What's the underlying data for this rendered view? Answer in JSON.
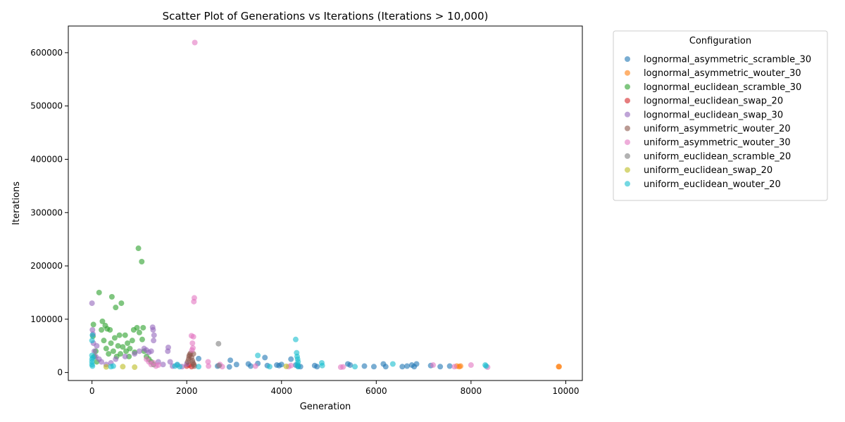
{
  "chart_data": {
    "type": "scatter",
    "title": "Scatter Plot of Generations vs Iterations (Iterations > 10,000)",
    "xlabel": "Generation",
    "ylabel": "Iterations",
    "xlim": [
      -500,
      10350
    ],
    "ylim": [
      -15000,
      650000
    ],
    "xticks": [
      0,
      2000,
      4000,
      6000,
      8000,
      10000
    ],
    "yticks": [
      0,
      100000,
      200000,
      300000,
      400000,
      500000,
      600000
    ],
    "grid": false,
    "legend": {
      "title": "Configuration",
      "placement": "outside-right-top"
    },
    "series": [
      {
        "name": "lognormal_asymmetric_scramble_30",
        "color": "#1f77b4",
        "points": [
          [
            2250,
            26000
          ],
          [
            2650,
            12000
          ],
          [
            2900,
            10500
          ],
          [
            2920,
            23000
          ],
          [
            3050,
            15000
          ],
          [
            3300,
            16000
          ],
          [
            3350,
            12000
          ],
          [
            3500,
            17000
          ],
          [
            3650,
            28000
          ],
          [
            3700,
            13000
          ],
          [
            3900,
            14000
          ],
          [
            3950,
            13000
          ],
          [
            4000,
            15000
          ],
          [
            4200,
            25000
          ],
          [
            4300,
            14000
          ],
          [
            4350,
            12000
          ],
          [
            4400,
            11000
          ],
          [
            4700,
            13000
          ],
          [
            4750,
            11000
          ],
          [
            5400,
            16000
          ],
          [
            5450,
            14000
          ],
          [
            5750,
            12000
          ],
          [
            5950,
            11000
          ],
          [
            6150,
            16000
          ],
          [
            6200,
            11000
          ],
          [
            6550,
            11000
          ],
          [
            6650,
            12000
          ],
          [
            6750,
            14000
          ],
          [
            6800,
            11000
          ],
          [
            6850,
            16000
          ],
          [
            7150,
            13000
          ],
          [
            7350,
            11000
          ],
          [
            7550,
            12000
          ]
        ]
      },
      {
        "name": "lognormal_asymmetric_wouter_30",
        "color": "#ff7f0e",
        "points": [
          [
            7700,
            12000
          ],
          [
            7750,
            11000
          ],
          [
            7780,
            12000
          ],
          [
            9850,
            11000
          ],
          [
            9860,
            11000
          ]
        ]
      },
      {
        "name": "lognormal_euclidean_scramble_30",
        "color": "#2ca02c",
        "points": [
          [
            20,
            68000
          ],
          [
            30,
            90000
          ],
          [
            50,
            30000
          ],
          [
            80,
            40000
          ],
          [
            100,
            20000
          ],
          [
            150,
            150000
          ],
          [
            200,
            80000
          ],
          [
            220,
            96000
          ],
          [
            250,
            60000
          ],
          [
            280,
            88000
          ],
          [
            300,
            45000
          ],
          [
            320,
            82000
          ],
          [
            350,
            35000
          ],
          [
            380,
            80000
          ],
          [
            400,
            55000
          ],
          [
            420,
            142000
          ],
          [
            450,
            40000
          ],
          [
            480,
            65000
          ],
          [
            500,
            122000
          ],
          [
            520,
            30000
          ],
          [
            550,
            50000
          ],
          [
            580,
            70000
          ],
          [
            600,
            35000
          ],
          [
            620,
            130000
          ],
          [
            650,
            48000
          ],
          [
            700,
            70000
          ],
          [
            720,
            40000
          ],
          [
            750,
            55000
          ],
          [
            780,
            30000
          ],
          [
            800,
            45000
          ],
          [
            850,
            60000
          ],
          [
            880,
            80000
          ],
          [
            900,
            38000
          ],
          [
            950,
            84000
          ],
          [
            980,
            233000
          ],
          [
            1000,
            75000
          ],
          [
            1050,
            208000
          ],
          [
            1060,
            62000
          ],
          [
            1080,
            84000
          ],
          [
            1100,
            40000
          ],
          [
            1150,
            30000
          ],
          [
            1200,
            25000
          ],
          [
            1250,
            20000
          ],
          [
            1300,
            15000
          ]
        ]
      },
      {
        "name": "lognormal_euclidean_swap_20",
        "color": "#d62728",
        "points": [
          [
            2000,
            12000
          ],
          [
            2050,
            14000
          ],
          [
            2100,
            11000
          ]
        ]
      },
      {
        "name": "lognormal_euclidean_swap_30",
        "color": "#9467bd",
        "points": [
          [
            0,
            130000
          ],
          [
            10,
            80000
          ],
          [
            20,
            72000
          ],
          [
            30,
            55000
          ],
          [
            50,
            40000
          ],
          [
            80,
            30000
          ],
          [
            100,
            50000
          ],
          [
            150,
            25000
          ],
          [
            200,
            20000
          ],
          [
            300,
            15000
          ],
          [
            400,
            18000
          ],
          [
            500,
            25000
          ],
          [
            700,
            30000
          ],
          [
            900,
            35000
          ],
          [
            1000,
            40000
          ],
          [
            1100,
            45000
          ],
          [
            1150,
            42000
          ],
          [
            1200,
            38000
          ],
          [
            1250,
            40000
          ],
          [
            1280,
            85000
          ],
          [
            1290,
            80000
          ],
          [
            1300,
            60000
          ],
          [
            1310,
            70000
          ],
          [
            1400,
            20000
          ],
          [
            1500,
            15000
          ],
          [
            1600,
            40000
          ],
          [
            1610,
            47000
          ],
          [
            1650,
            20000
          ],
          [
            1700,
            12000
          ],
          [
            1800,
            14000
          ],
          [
            1900,
            11000
          ],
          [
            2000,
            16000
          ]
        ]
      },
      {
        "name": "uniform_asymmetric_wouter_20",
        "color": "#8c564b",
        "points": [
          [
            2020,
            20000
          ],
          [
            2040,
            25000
          ],
          [
            2050,
            30000
          ],
          [
            2060,
            33000
          ],
          [
            2080,
            36000
          ],
          [
            2100,
            28000
          ],
          [
            2120,
            22000
          ],
          [
            2130,
            18000
          ],
          [
            2140,
            35000
          ],
          [
            2150,
            15000
          ],
          [
            2160,
            12000
          ]
        ]
      },
      {
        "name": "uniform_asymmetric_wouter_30",
        "color": "#e377c2",
        "points": [
          [
            2170,
            619000
          ],
          [
            2150,
            133000
          ],
          [
            2160,
            140000
          ],
          [
            2100,
            69000
          ],
          [
            2140,
            67000
          ],
          [
            2120,
            55000
          ],
          [
            2130,
            46000
          ],
          [
            2110,
            42000
          ],
          [
            1150,
            25000
          ],
          [
            1200,
            20000
          ],
          [
            1250,
            15000
          ],
          [
            1300,
            18000
          ],
          [
            1350,
            12000
          ],
          [
            1400,
            14000
          ],
          [
            2450,
            20000
          ],
          [
            2460,
            12000
          ],
          [
            2700,
            15000
          ],
          [
            2750,
            11000
          ],
          [
            3450,
            12000
          ],
          [
            4150,
            11000
          ],
          [
            4200,
            13000
          ],
          [
            5250,
            10000
          ],
          [
            5300,
            10500
          ],
          [
            7200,
            14000
          ],
          [
            7650,
            11000
          ],
          [
            8000,
            14000
          ],
          [
            8350,
            10000
          ]
        ]
      },
      {
        "name": "uniform_euclidean_scramble_20",
        "color": "#7f7f7f",
        "points": [
          [
            2670,
            54000
          ],
          [
            2680,
            13000
          ]
        ]
      },
      {
        "name": "uniform_euclidean_swap_20",
        "color": "#bcbd22",
        "points": [
          [
            300,
            10500
          ],
          [
            650,
            11000
          ],
          [
            900,
            10000
          ],
          [
            4100,
            11500
          ]
        ]
      },
      {
        "name": "uniform_euclidean_wouter_20",
        "color": "#17becf",
        "points": [
          [
            0,
            32000
          ],
          [
            0,
            25000
          ],
          [
            0,
            20000
          ],
          [
            0,
            15000
          ],
          [
            0,
            60000
          ],
          [
            10,
            70000
          ],
          [
            10,
            12000
          ],
          [
            20,
            28000
          ],
          [
            400,
            11000
          ],
          [
            450,
            12000
          ],
          [
            1750,
            12000
          ],
          [
            1800,
            15000
          ],
          [
            1850,
            11000
          ],
          [
            2250,
            11000
          ],
          [
            3500,
            32000
          ],
          [
            3750,
            11000
          ],
          [
            4300,
            62000
          ],
          [
            4320,
            37000
          ],
          [
            4330,
            30000
          ],
          [
            4340,
            25000
          ],
          [
            4350,
            20000
          ],
          [
            4340,
            15000
          ],
          [
            4350,
            11000
          ],
          [
            4850,
            18000
          ],
          [
            4860,
            13000
          ],
          [
            5550,
            11000
          ],
          [
            6350,
            16000
          ],
          [
            8300,
            14000
          ],
          [
            8320,
            12000
          ]
        ]
      }
    ]
  }
}
